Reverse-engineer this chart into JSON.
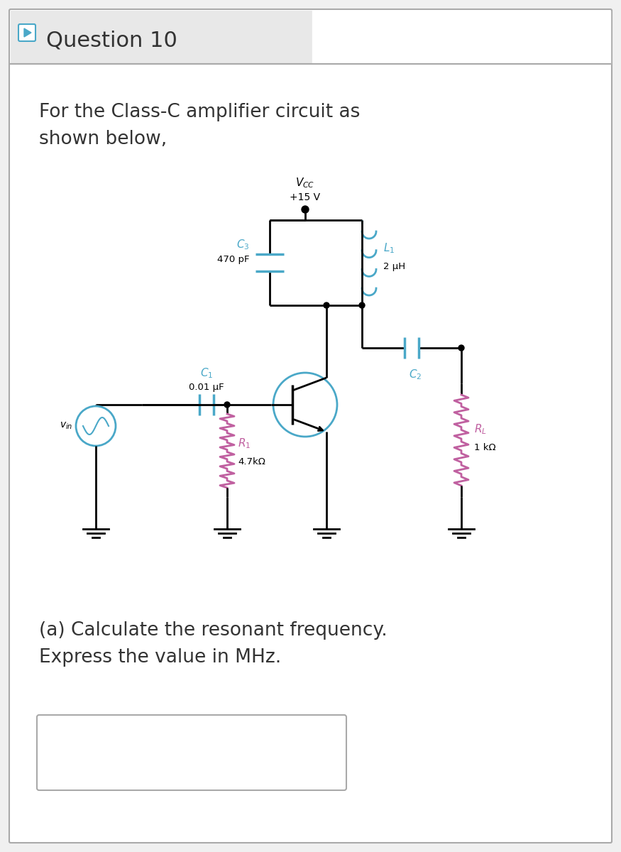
{
  "title": "Question 10",
  "bg_color": "#f0f0f0",
  "inner_bg": "#ffffff",
  "text_color": "#333333",
  "circuit_color": "#000000",
  "blue_color": "#4aa8c8",
  "pink_color": "#c060a0",
  "intro_text": "For the Class-C amplifier circuit as\nshown below,",
  "vcc_label": "V",
  "vcc_sub": "CC",
  "vcc_val": "+15 V",
  "c3_label": "C",
  "c3_sub": "3",
  "c3_val": "470 pF",
  "l1_label": "L",
  "l1_sub": "1",
  "l1_val": "2 μH",
  "c2_label": "C",
  "c2_sub": "2",
  "c1_label": "C",
  "c1_sub": "1",
  "c1_val": "0.01 μF",
  "r1_label": "R",
  "r1_sub": "1",
  "r1_val": "4.7kΩ",
  "rl_label": "R",
  "rl_sub": "L",
  "rl_val": "1 kΩ",
  "vin_label": "v",
  "vin_sub": "in",
  "question_text": "(a) Calculate the resonant frequency.\nExpress the value in MHz.",
  "answer_box_color": "#e8e8e8"
}
